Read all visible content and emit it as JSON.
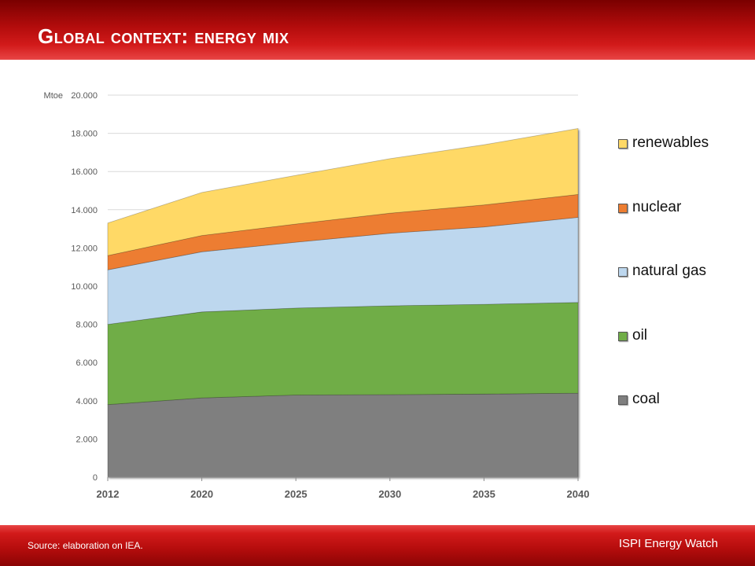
{
  "slide": {
    "title": "Global context: energy mix",
    "source": "Source: elaboration on IEA.",
    "brand": "ISPI Energy Watch"
  },
  "colors": {
    "header_red": "#c0121a",
    "coal": "#7f7f7f",
    "oil": "#70ad47",
    "natural_gas": "#bdd7ee",
    "nuclear": "#ed7d31",
    "renewables": "#ffd966"
  },
  "chart_data": {
    "type": "area",
    "stacked": true,
    "x": [
      "2012",
      "2020",
      "2025",
      "2030",
      "2035",
      "2040"
    ],
    "y_unit_label": "Mtoe",
    "ylim": [
      0,
      20000
    ],
    "yticks": [
      "0",
      "2.000",
      "4.000",
      "6.000",
      "8.000",
      "10.000",
      "12.000",
      "14.000",
      "16.000",
      "18.000",
      "20.000"
    ],
    "grid": true,
    "legend_position": "right",
    "series": [
      {
        "name": "coal",
        "values": [
          3800,
          4150,
          4300,
          4320,
          4350,
          4400
        ]
      },
      {
        "name": "oil",
        "values": [
          4200,
          4500,
          4550,
          4650,
          4700,
          4750
        ]
      },
      {
        "name": "natural gas",
        "values": [
          2850,
          3150,
          3450,
          3800,
          4050,
          4450
        ]
      },
      {
        "name": "nuclear",
        "values": [
          750,
          850,
          950,
          1050,
          1150,
          1200
        ]
      },
      {
        "name": "renewables",
        "values": [
          1700,
          2250,
          2550,
          2850,
          3150,
          3450
        ]
      }
    ]
  }
}
